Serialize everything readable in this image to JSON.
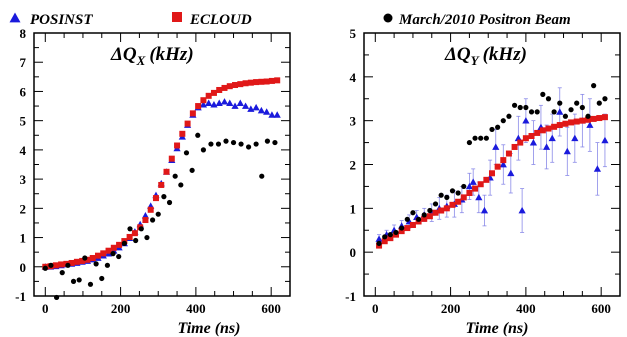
{
  "legend": {
    "posinst": {
      "label": "POSINST",
      "color": "#1a1adc",
      "marker": "triangle"
    },
    "ecloud": {
      "label": "ECLOUD",
      "color": "#e01818",
      "marker": "square"
    },
    "data": {
      "label": "March/2010 Positron Beam",
      "color": "#000000",
      "marker": "circle"
    }
  },
  "chart_data": [
    {
      "type": "scatter",
      "title_main": "ΔQ",
      "title_sub": "X",
      "title_unit": "(kHz)",
      "xlabel": "Time (ns)",
      "ylabel": "",
      "xlim": [
        -30,
        650
      ],
      "ylim": [
        -1,
        8
      ],
      "xticks": [
        0,
        200,
        400,
        600
      ],
      "yticks": [
        -1,
        0,
        1,
        2,
        3,
        4,
        5,
        6,
        7,
        8
      ],
      "grid": false,
      "series": [
        {
          "name": "POSINST",
          "marker": "triangle",
          "color": "#1a1adc",
          "x": [
            0,
            14,
            28,
            42,
            56,
            70,
            84,
            98,
            112,
            126,
            140,
            154,
            168,
            182,
            196,
            210,
            224,
            238,
            252,
            266,
            280,
            294,
            308,
            322,
            336,
            350,
            364,
            378,
            392,
            406,
            420,
            434,
            448,
            462,
            476,
            490,
            504,
            518,
            532,
            546,
            560,
            574,
            588,
            602,
            616
          ],
          "y": [
            0.0,
            0.0,
            0.02,
            0.05,
            0.08,
            0.1,
            0.13,
            0.17,
            0.2,
            0.25,
            0.3,
            0.38,
            0.45,
            0.55,
            0.66,
            0.8,
            0.98,
            1.2,
            1.45,
            1.75,
            2.08,
            2.45,
            2.85,
            3.25,
            3.65,
            4.05,
            4.45,
            4.85,
            5.2,
            5.45,
            5.55,
            5.6,
            5.55,
            5.6,
            5.65,
            5.6,
            5.5,
            5.6,
            5.5,
            5.4,
            5.45,
            5.35,
            5.3,
            5.2,
            5.2
          ]
        },
        {
          "name": "ECLOUD",
          "marker": "square",
          "color": "#e01818",
          "x": [
            0,
            14,
            28,
            42,
            56,
            70,
            84,
            98,
            112,
            126,
            140,
            154,
            168,
            182,
            196,
            210,
            224,
            238,
            252,
            266,
            280,
            294,
            308,
            322,
            336,
            350,
            364,
            378,
            392,
            406,
            420,
            434,
            448,
            462,
            476,
            490,
            504,
            518,
            532,
            546,
            560,
            574,
            588,
            602,
            616
          ],
          "y": [
            0.0,
            0.02,
            0.05,
            0.08,
            0.1,
            0.13,
            0.17,
            0.2,
            0.24,
            0.3,
            0.38,
            0.46,
            0.55,
            0.65,
            0.75,
            0.88,
            1.02,
            1.15,
            1.35,
            1.6,
            1.95,
            2.35,
            2.8,
            3.25,
            3.7,
            4.15,
            4.55,
            4.9,
            5.25,
            5.5,
            5.7,
            5.85,
            5.95,
            6.05,
            6.12,
            6.18,
            6.22,
            6.25,
            6.28,
            6.3,
            6.32,
            6.33,
            6.34,
            6.36,
            6.38
          ]
        },
        {
          "name": "March/2010 Positron Beam",
          "marker": "circle",
          "color": "#000000",
          "x": [
            0,
            15,
            30,
            45,
            60,
            75,
            90,
            105,
            120,
            135,
            150,
            165,
            180,
            195,
            210,
            225,
            240,
            255,
            270,
            285,
            300,
            315,
            330,
            345,
            360,
            375,
            390,
            405,
            420,
            440,
            460,
            480,
            500,
            520,
            540,
            560,
            575,
            590,
            610
          ],
          "y": [
            -0.05,
            0.05,
            -1.05,
            -0.2,
            0.05,
            -0.5,
            -0.45,
            0.3,
            -0.6,
            0.1,
            -0.4,
            0.05,
            0.45,
            0.35,
            0.8,
            1.3,
            0.9,
            1.3,
            1.0,
            1.6,
            1.8,
            2.4,
            2.2,
            3.1,
            2.8,
            3.9,
            3.3,
            4.5,
            4.0,
            4.2,
            4.2,
            4.3,
            4.25,
            4.2,
            4.1,
            4.2,
            3.1,
            4.3,
            4.25
          ]
        }
      ]
    },
    {
      "type": "scatter",
      "title_main": "ΔQ",
      "title_sub": "Y",
      "title_unit": "(kHz)",
      "xlabel": "Time (ns)",
      "ylabel": "",
      "xlim": [
        -30,
        650
      ],
      "ylim": [
        -1,
        5
      ],
      "xticks": [
        0,
        200,
        400,
        600
      ],
      "yticks": [
        -1,
        0,
        1,
        2,
        3,
        4,
        5
      ],
      "grid": false,
      "series": [
        {
          "name": "POSINST",
          "marker": "triangle",
          "color": "#1a1adc",
          "errorbars": true,
          "x": [
            10,
            30,
            50,
            70,
            90,
            110,
            130,
            150,
            170,
            190,
            210,
            230,
            250,
            260,
            275,
            290,
            305,
            320,
            340,
            360,
            380,
            390,
            400,
            420,
            440,
            455,
            470,
            490,
            510,
            530,
            550,
            570,
            590,
            610
          ],
          "y": [
            0.3,
            0.4,
            0.5,
            0.6,
            0.7,
            0.8,
            0.85,
            0.9,
            1.0,
            1.05,
            1.1,
            1.2,
            1.5,
            1.6,
            1.25,
            0.95,
            1.7,
            2.4,
            2.0,
            1.8,
            2.6,
            0.95,
            3.0,
            2.5,
            2.85,
            2.4,
            2.6,
            3.2,
            2.3,
            2.6,
            3.0,
            2.9,
            1.9,
            2.55
          ],
          "yerr": [
            0.1,
            0.1,
            0.12,
            0.12,
            0.15,
            0.15,
            0.15,
            0.2,
            0.25,
            0.25,
            0.3,
            0.3,
            0.3,
            0.3,
            0.35,
            0.35,
            0.4,
            0.4,
            0.45,
            0.45,
            0.5,
            0.5,
            0.5,
            0.5,
            0.5,
            0.5,
            0.55,
            0.55,
            0.55,
            0.55,
            0.6,
            0.6,
            0.6,
            0.6
          ]
        },
        {
          "name": "ECLOUD",
          "marker": "square",
          "color": "#e01818",
          "x": [
            10,
            25,
            40,
            55,
            70,
            85,
            100,
            115,
            130,
            145,
            160,
            175,
            190,
            205,
            220,
            235,
            250,
            265,
            280,
            295,
            310,
            325,
            340,
            355,
            370,
            385,
            400,
            415,
            430,
            445,
            460,
            475,
            490,
            505,
            520,
            535,
            550,
            565,
            580,
            595,
            610
          ],
          "y": [
            0.15,
            0.25,
            0.32,
            0.4,
            0.48,
            0.55,
            0.62,
            0.7,
            0.76,
            0.82,
            0.9,
            0.95,
            1.0,
            1.08,
            1.15,
            1.25,
            1.35,
            1.45,
            1.55,
            1.65,
            1.8,
            1.95,
            2.1,
            2.25,
            2.4,
            2.5,
            2.6,
            2.65,
            2.72,
            2.78,
            2.82,
            2.86,
            2.9,
            2.93,
            2.96,
            2.98,
            3.0,
            3.02,
            3.04,
            3.06,
            3.08
          ]
        },
        {
          "name": "March/2010 Positron Beam",
          "marker": "circle",
          "color": "#000000",
          "x": [
            10,
            25,
            40,
            55,
            70,
            85,
            100,
            115,
            130,
            145,
            160,
            175,
            190,
            205,
            220,
            235,
            250,
            265,
            280,
            295,
            310,
            325,
            340,
            355,
            370,
            385,
            400,
            415,
            430,
            445,
            460,
            475,
            490,
            505,
            520,
            535,
            550,
            565,
            580,
            595,
            610
          ],
          "y": [
            0.2,
            0.35,
            0.4,
            0.45,
            0.55,
            0.75,
            0.9,
            0.75,
            0.85,
            0.95,
            1.1,
            1.3,
            1.25,
            1.4,
            1.35,
            1.5,
            2.5,
            2.6,
            2.6,
            2.6,
            2.8,
            2.85,
            3.0,
            3.1,
            3.35,
            3.3,
            3.3,
            3.2,
            3.2,
            3.6,
            3.5,
            3.2,
            3.4,
            3.1,
            3.25,
            3.4,
            3.3,
            3.1,
            3.8,
            3.4,
            3.5
          ]
        }
      ]
    }
  ]
}
